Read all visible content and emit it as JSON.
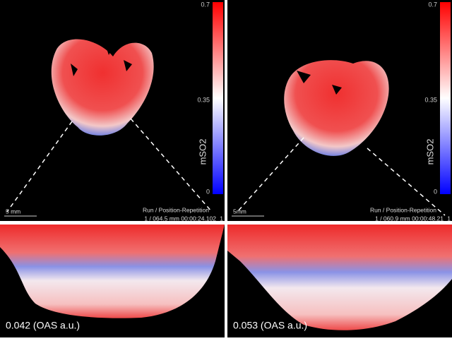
{
  "panels": [
    {
      "colorbar": {
        "ticks": [
          "0.7",
          "0.35",
          "0"
        ],
        "label": "mSO2"
      },
      "scale_bar": "5 mm",
      "run_label": "Run / Position-Repetition",
      "run_info": "1 / 064.5 mm 00:00:24.102",
      "run_index": "1"
    },
    {
      "colorbar": {
        "ticks": [
          "0.7",
          "0.35",
          "0"
        ],
        "label": "mSO2"
      },
      "scale_bar": "5mm",
      "run_label": "Run / Position-Repetition",
      "run_info": "1 / 060.9 mm 00:00:48.21",
      "run_index": "1"
    }
  ],
  "zooms": [
    {
      "label": "0.042 (OAS a.u.)"
    },
    {
      "label": "0.053 (OAS a.u.)"
    }
  ]
}
